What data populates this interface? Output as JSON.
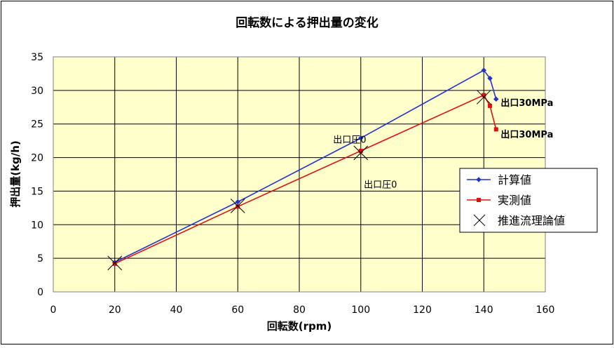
{
  "chart_data": {
    "type": "line",
    "title": "回転数による押出量の変化",
    "xlabel": "回転数(rpm)",
    "ylabel": "押出量(kg/h)",
    "xlim": [
      0,
      160
    ],
    "ylim": [
      0,
      35
    ],
    "xticks": [
      0,
      20,
      40,
      60,
      80,
      100,
      120,
      140,
      160
    ],
    "yticks": [
      0,
      5,
      10,
      15,
      20,
      25,
      30,
      35
    ],
    "grid": true,
    "legend_position": "right",
    "colors": {
      "plot_background": "#ffffcc",
      "calc": "#2233cc",
      "measured": "#dd1111",
      "theory": "#000000",
      "grid": "#000000"
    },
    "series": [
      {
        "name": "計算値",
        "marker": "diamond",
        "x": [
          20,
          60,
          100,
          140,
          142,
          144
        ],
        "y": [
          4.4,
          13.4,
          22.9,
          33.0,
          31.8,
          28.7
        ]
      },
      {
        "name": "実測値",
        "marker": "square",
        "x": [
          20,
          60,
          100,
          140,
          142,
          144
        ],
        "y": [
          4.2,
          12.7,
          21.0,
          29.3,
          27.7,
          24.2
        ]
      },
      {
        "name": "推進流理論値",
        "marker": "x",
        "x": [
          20,
          60,
          100,
          140
        ],
        "y": [
          4.3,
          12.8,
          20.7,
          29.0
        ]
      }
    ],
    "annotations": [
      {
        "text": "出口圧0",
        "x": 91,
        "y": 22.2
      },
      {
        "text": "出口圧0",
        "x": 101,
        "y": 15.5
      },
      {
        "text": "出口30MPa",
        "x": 145.5,
        "y": 27.7
      },
      {
        "text": "出口30MPa",
        "x": 145.5,
        "y": 23.0
      }
    ]
  }
}
